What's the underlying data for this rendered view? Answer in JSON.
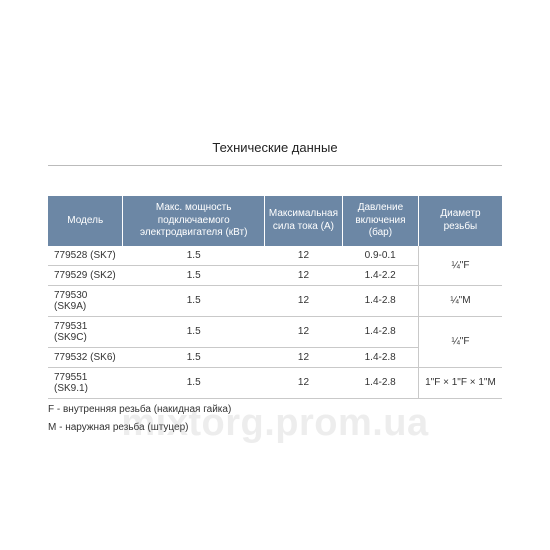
{
  "title": "Технические данные",
  "columns": {
    "model": "Модель",
    "power": "Макс. мощность подключаемого электродвигателя (кВт)",
    "current": "Максимальная сила тока (А)",
    "pressure": "Давление включения (бар)",
    "thread": "Диаметр резьбы"
  },
  "rows": [
    {
      "model": "779528 (SK7)",
      "power": "1.5",
      "current": "12",
      "pressure": "0.9-0.1"
    },
    {
      "model": "779529 (SK2)",
      "power": "1.5",
      "current": "12",
      "pressure": "1.4-2.2"
    },
    {
      "model": "779530 (SK9A)",
      "power": "1.5",
      "current": "12",
      "pressure": "1.4-2.8"
    },
    {
      "model": "779531 (SK9C)",
      "power": "1.5",
      "current": "12",
      "pressure": "1.4-2.8"
    },
    {
      "model": "779532 (SK6)",
      "power": "1.5",
      "current": "12",
      "pressure": "1.4-2.8"
    },
    {
      "model": "779551 (SK9.1)",
      "power": "1.5",
      "current": "12",
      "pressure": "1.4-2.8"
    }
  ],
  "thread_groups": [
    {
      "start": 0,
      "span": 2,
      "value": "¼\"F"
    },
    {
      "start": 2,
      "span": 1,
      "value": "¼\"M"
    },
    {
      "start": 3,
      "span": 2,
      "value": "¼\"F"
    },
    {
      "start": 5,
      "span": 1,
      "value": "1\"F × 1\"F × 1\"M"
    }
  ],
  "footnotes": [
    "F - внутренняя резьба (накидная гайка)",
    "M - наружная резьба (штуцер)"
  ],
  "watermark": "mixtorg.prom.ua",
  "style": {
    "header_bg": "#6c87a5",
    "header_fg": "#ffffff",
    "row_border": "#c9c9c9",
    "title_rule": "#bbbbbb",
    "text_color": "#333333",
    "watermark_color": "rgba(150,150,150,0.17)",
    "background": "#ffffff",
    "font_family": "Arial, Helvetica, sans-serif",
    "title_fontsize": 13,
    "table_fontsize": 10,
    "footnote_fontsize": 10,
    "col_widths_pct": [
      17,
      32,
      15,
      17,
      19
    ]
  }
}
